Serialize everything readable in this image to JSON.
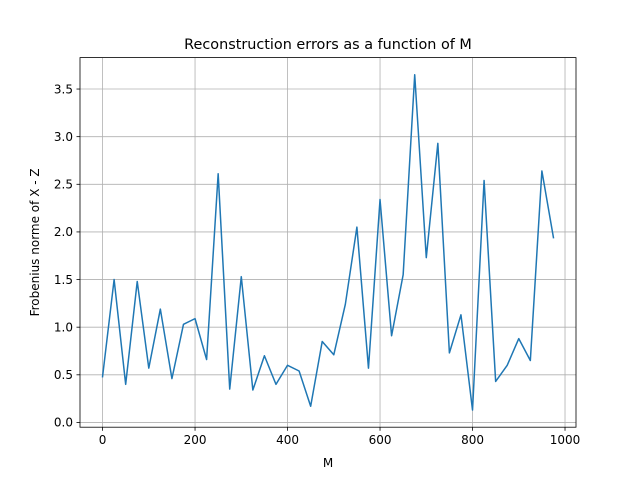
{
  "chart_data": {
    "type": "line",
    "title": "Reconstruction errors as a function of M",
    "xlabel": "M",
    "ylabel": "Frobenius norme of X - Z",
    "xlim": [
      -48.75,
      1023.75
    ],
    "ylim": [
      -0.05,
      3.83
    ],
    "xticks": [
      0,
      200,
      400,
      600,
      800,
      1000
    ],
    "xtick_labels": [
      "0",
      "200",
      "400",
      "600",
      "800",
      "1000"
    ],
    "yticks": [
      0.0,
      0.5,
      1.0,
      1.5,
      2.0,
      2.5,
      3.0,
      3.5
    ],
    "ytick_labels": [
      "0.0",
      "0.5",
      "1.0",
      "1.5",
      "2.0",
      "2.5",
      "3.0",
      "3.5"
    ],
    "grid": true,
    "line_color": "#1f77b4",
    "series": [
      {
        "x": [
          0,
          25,
          50,
          75,
          100,
          125,
          150,
          175,
          200,
          225,
          250,
          275,
          300,
          325,
          350,
          375,
          400,
          425,
          450,
          475,
          500,
          525,
          550,
          575,
          600,
          625,
          650,
          675,
          700,
          725,
          750,
          775,
          800,
          825,
          850,
          875,
          900,
          925,
          950,
          975
        ],
        "values": [
          0.48,
          1.5,
          0.4,
          1.48,
          0.57,
          1.19,
          0.46,
          1.03,
          1.09,
          0.66,
          2.61,
          0.35,
          1.53,
          0.34,
          0.7,
          0.4,
          0.6,
          0.54,
          0.17,
          0.85,
          0.71,
          1.24,
          2.05,
          0.57,
          2.34,
          0.91,
          1.55,
          3.65,
          1.73,
          2.93,
          0.73,
          1.13,
          0.13,
          2.54,
          0.43,
          0.6,
          0.88,
          0.65,
          2.64,
          1.94
        ]
      }
    ]
  }
}
